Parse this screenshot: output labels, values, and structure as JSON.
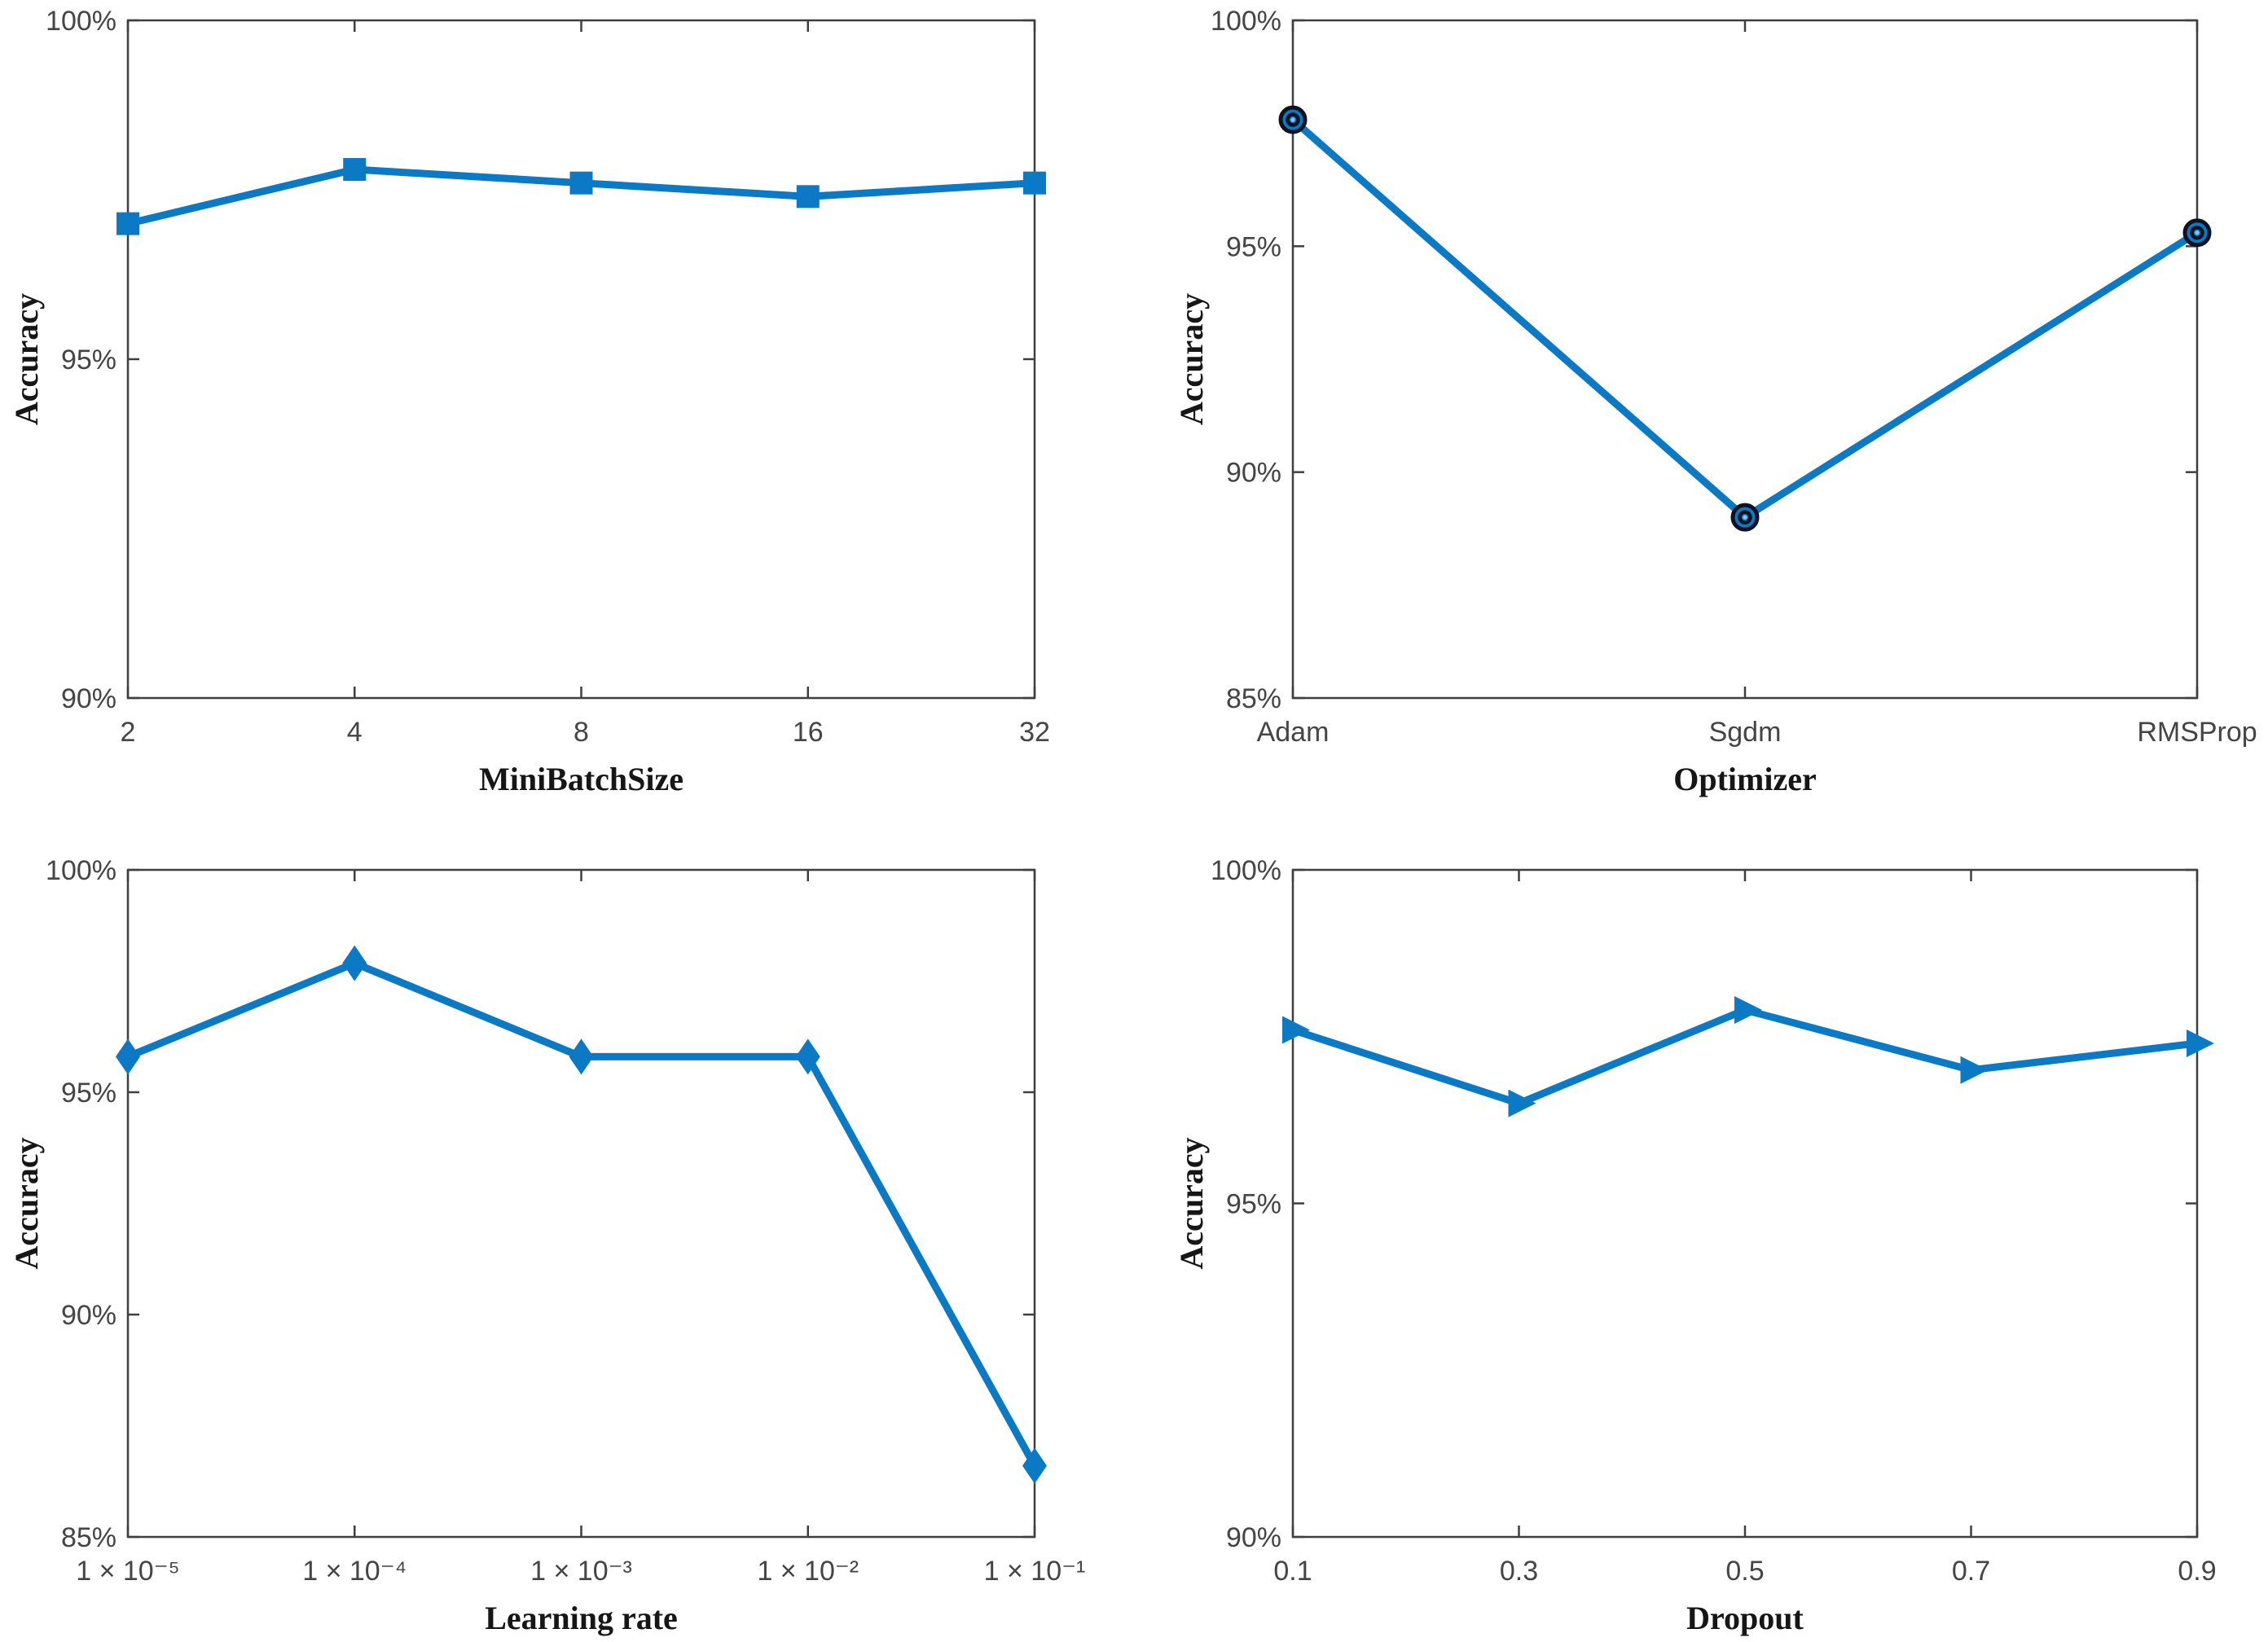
{
  "page": {
    "background": "#ffffff",
    "description": "2x2 grid of MATLAB-style hyperparameter sensitivity line plots"
  },
  "colors": {
    "line_blue": "#0b79c4",
    "marker_fill": "#0b79c4",
    "marker_edge_dark": "#10121f",
    "marker_center_light": "#8ec6ea",
    "axis_frame": "#3f3f3f",
    "tick_label": "#454545",
    "axis_label": "#161616"
  },
  "chart_data": [
    {
      "id": "minibatchsize",
      "type": "line",
      "position": "top-left",
      "xlabel": "MiniBatchSize",
      "ylabel": "Accuracy",
      "categories": [
        "2",
        "4",
        "8",
        "16",
        "32"
      ],
      "values": [
        97.0,
        97.8,
        97.6,
        97.4,
        97.6
      ],
      "ylim": [
        90,
        100
      ],
      "yticks": [
        90,
        95,
        100
      ],
      "ytick_labels": [
        "90%",
        "95%",
        "100%"
      ],
      "marker": "square",
      "grid": false,
      "legend": null
    },
    {
      "id": "optimizer",
      "type": "line",
      "position": "top-right",
      "xlabel": "Optimizer",
      "ylabel": "Accuracy",
      "categories": [
        "Adam",
        "Sgdm",
        "RMSProp"
      ],
      "values": [
        97.8,
        89.0,
        95.3
      ],
      "ylim": [
        85,
        100
      ],
      "yticks": [
        85,
        90,
        95,
        100
      ],
      "ytick_labels": [
        "85%",
        "90%",
        "95%",
        "100%"
      ],
      "marker": "circle-dot",
      "grid": false,
      "legend": null
    },
    {
      "id": "learning-rate",
      "type": "line",
      "position": "bottom-left",
      "xlabel": "Learning rate",
      "ylabel": "Accuracy",
      "categories": [
        "1 × 10⁻⁵",
        "1 × 10⁻⁴",
        "1 × 10⁻³",
        "1 × 10⁻²",
        "1 × 10⁻¹"
      ],
      "values": [
        95.8,
        97.9,
        95.8,
        95.8,
        86.6
      ],
      "ylim": [
        85,
        100
      ],
      "yticks": [
        85,
        90,
        95,
        100
      ],
      "ytick_labels": [
        "85%",
        "90%",
        "95%",
        "100%"
      ],
      "marker": "diamond",
      "grid": false,
      "legend": null
    },
    {
      "id": "dropout",
      "type": "line",
      "position": "bottom-right",
      "xlabel": "Dropout",
      "ylabel": "Accuracy",
      "categories": [
        "0.1",
        "0.3",
        "0.5",
        "0.7",
        "0.9"
      ],
      "values": [
        97.6,
        96.5,
        97.9,
        97.0,
        97.4
      ],
      "ylim": [
        90,
        100
      ],
      "yticks": [
        90,
        95,
        100
      ],
      "ytick_labels": [
        "90%",
        "95%",
        "100%"
      ],
      "marker": "triangle-right",
      "grid": false,
      "legend": null
    }
  ]
}
